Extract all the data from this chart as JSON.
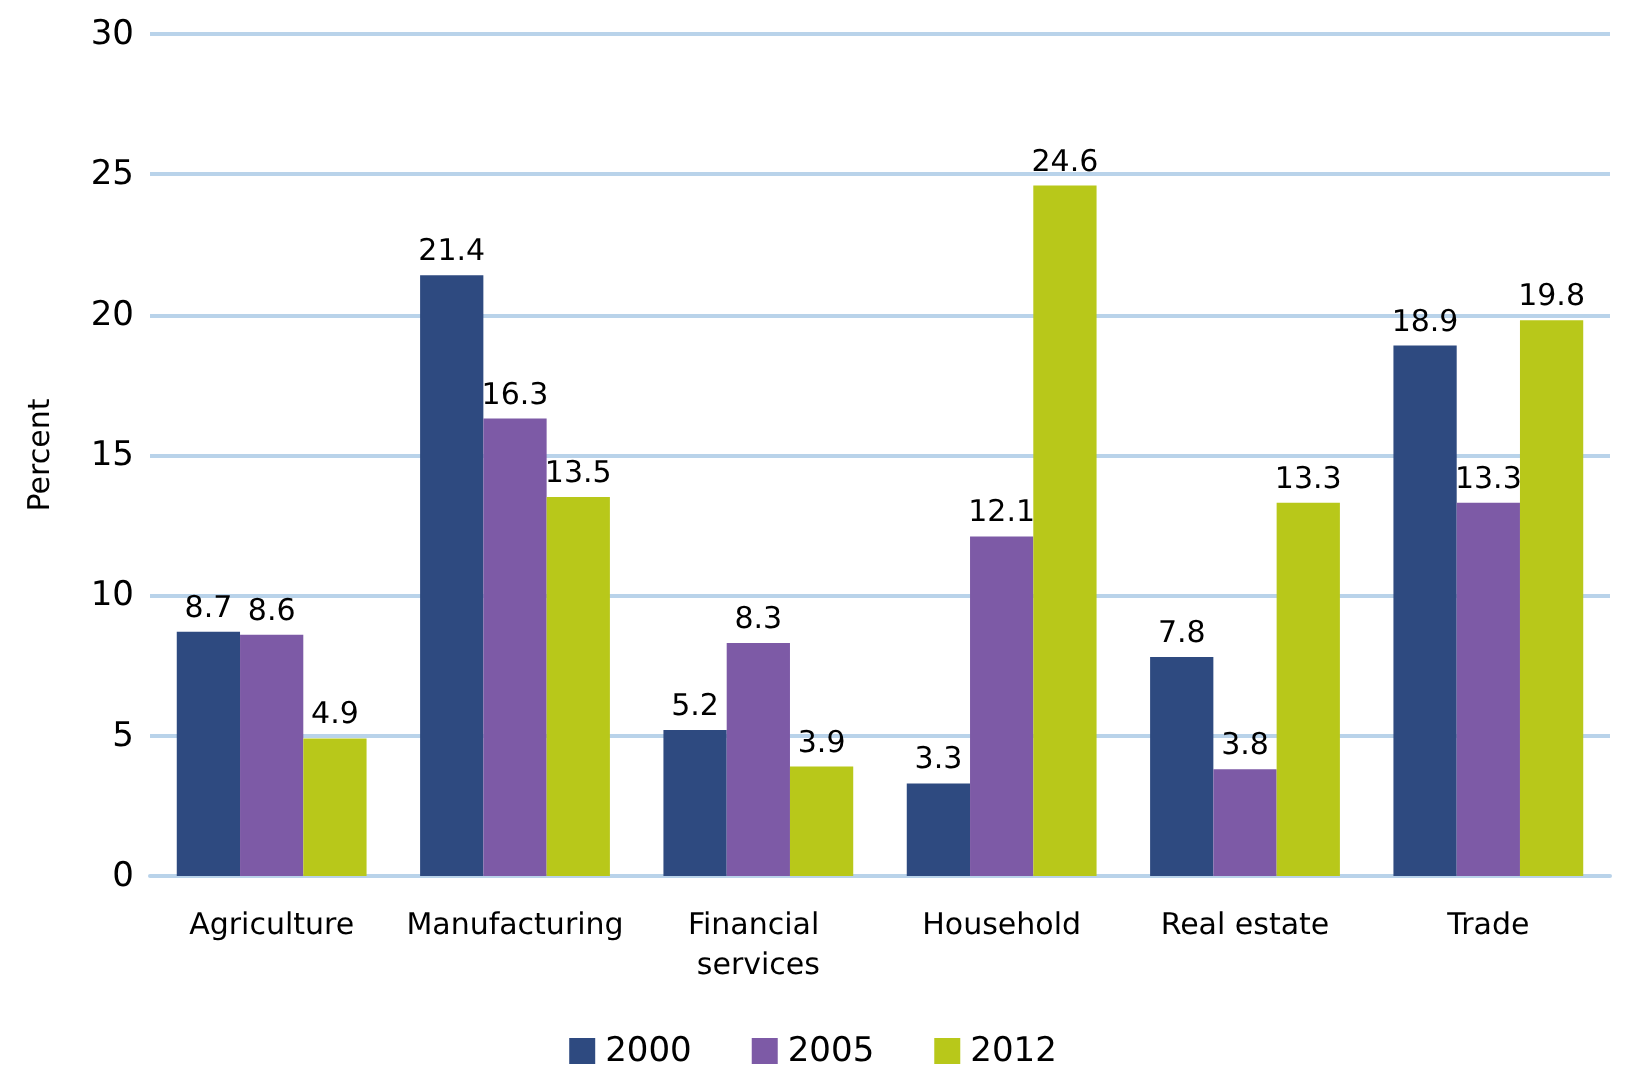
{
  "chart_data": {
    "type": "bar",
    "ylabel": "Percent",
    "categories": [
      "Agriculture",
      "Manufacturing",
      "Financial services",
      "Household",
      "Real estate",
      "Trade"
    ],
    "series": [
      {
        "name": "2000",
        "color": "#2e4a80",
        "values": [
          8.7,
          21.4,
          5.2,
          3.3,
          7.8,
          18.9
        ]
      },
      {
        "name": "2005",
        "color": "#7d5aa6",
        "values": [
          8.6,
          16.3,
          8.3,
          12.1,
          3.8,
          13.3
        ]
      },
      {
        "name": "2012",
        "color": "#b8c81a",
        "values": [
          4.9,
          13.5,
          3.9,
          24.6,
          13.3,
          19.8
        ]
      }
    ],
    "ylim": [
      0,
      30
    ],
    "yticks": [
      0,
      5,
      10,
      15,
      20,
      25,
      30
    ],
    "grid": "y",
    "legend": "bottom",
    "data_labels": true
  }
}
